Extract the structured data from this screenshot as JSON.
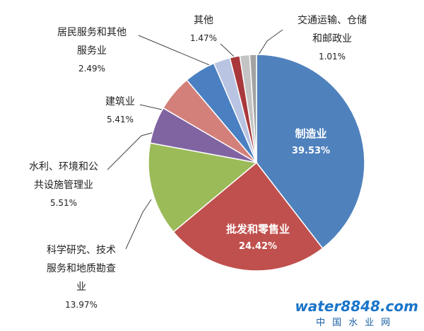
{
  "chart_data": {
    "type": "pie",
    "categories": [
      "制造业",
      "批发和零售业",
      "科学研究、技术服务和地质勘查业",
      "水利、环境和公共设施管理业",
      "建筑业",
      null,
      "居民服务和其他服务业",
      null,
      "其他",
      "交通运输、仓储和邮政业"
    ],
    "values": [
      39.53,
      24.42,
      13.97,
      5.51,
      5.41,
      4.7,
      2.49,
      1.49,
      1.47,
      1.01
    ],
    "value_labels": [
      "39.53%",
      "24.42%",
      "13.97%",
      "5.51%",
      "5.41%",
      null,
      "2.49%",
      null,
      "1.47%",
      "1.01%"
    ],
    "colors": [
      "#4f81bd",
      "#c0504d",
      "#9bbb59",
      "#8064a2",
      "#d3807b",
      "#4a7fc1",
      "#b8c4e2",
      "#a8383b",
      "#c4c4c4",
      "#a3a3a3"
    ],
    "watermark": {
      "brand": "water8848.com",
      "sub": "中国水业网"
    }
  }
}
